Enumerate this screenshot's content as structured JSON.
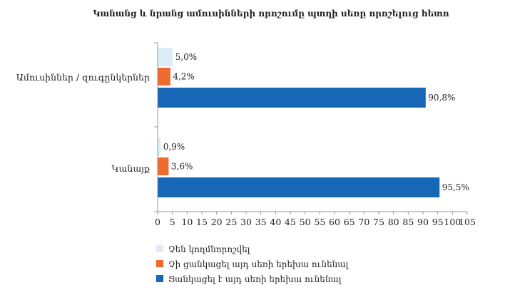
{
  "chart_data": {
    "type": "bar",
    "orientation": "horizontal",
    "title": "Կանանց և նրանց ամուսինների որոշումը պտղի սեռը որոշելուց հետո",
    "categories": [
      "Ամուսիններ / զուգընկերներ",
      "Կանայք"
    ],
    "series": [
      {
        "name": "Չեն կողմնորոշվել",
        "values": [
          5.0,
          0.9
        ],
        "labels": [
          "5,0%",
          "0,9%"
        ],
        "color": "#dbeef8"
      },
      {
        "name": "Չի ցանկացել այդ սեռի երեխա ունենալ",
        "values": [
          4.2,
          3.6
        ],
        "labels": [
          "4,2%",
          "3,6%"
        ],
        "color": "#ef6a2d"
      },
      {
        "name": "Ցանկացել է այդ սեռի երեխա ունենալ",
        "values": [
          90.8,
          95.5
        ],
        "labels": [
          "90,8%",
          "95,5%"
        ],
        "color": "#1667b5"
      }
    ],
    "xlim": [
      0,
      105
    ],
    "xticks": [
      "0",
      "5",
      "10",
      "15",
      "20",
      "25",
      "30",
      "35",
      "40",
      "45",
      "50",
      "55",
      "60",
      "65",
      "70",
      "75",
      "80",
      "85",
      "90",
      "95",
      "100",
      "105"
    ],
    "grid": false,
    "legend_position": "bottom"
  }
}
